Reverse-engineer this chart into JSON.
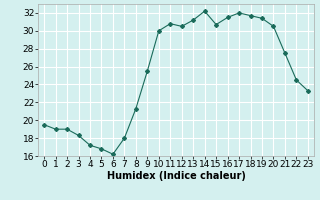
{
  "x": [
    0,
    1,
    2,
    3,
    4,
    5,
    6,
    7,
    8,
    9,
    10,
    11,
    12,
    13,
    14,
    15,
    16,
    17,
    18,
    19,
    20,
    21,
    22,
    23
  ],
  "y": [
    19.5,
    19.0,
    19.0,
    18.3,
    17.2,
    16.8,
    16.2,
    18.0,
    21.3,
    25.5,
    30.0,
    30.8,
    30.5,
    31.2,
    32.2,
    30.7,
    31.5,
    32.0,
    31.7,
    31.4,
    30.5,
    27.5,
    24.5,
    23.3
  ],
  "color": "#1a6b5a",
  "bg_color": "#d4f0ef",
  "grid_color": "#ffffff",
  "xlabel": "Humidex (Indice chaleur)",
  "ylim": [
    16,
    33
  ],
  "xlim": [
    -0.5,
    23.5
  ],
  "yticks": [
    16,
    18,
    20,
    22,
    24,
    26,
    28,
    30,
    32
  ],
  "xticks": [
    0,
    1,
    2,
    3,
    4,
    5,
    6,
    7,
    8,
    9,
    10,
    11,
    12,
    13,
    14,
    15,
    16,
    17,
    18,
    19,
    20,
    21,
    22,
    23
  ],
  "label_fontsize": 7,
  "tick_fontsize": 6.5
}
